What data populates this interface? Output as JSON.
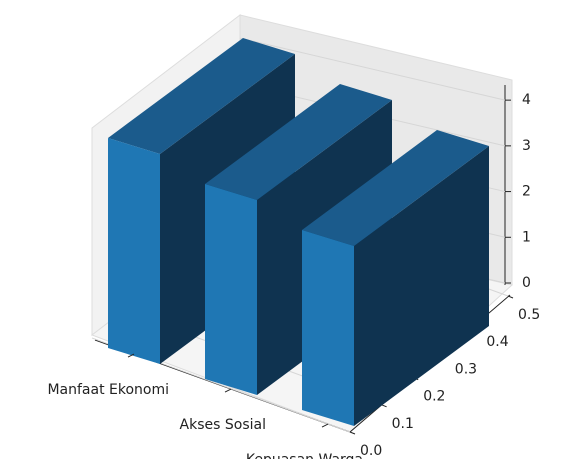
{
  "chart_data": {
    "type": "bar3d",
    "categories": [
      "Manfaat Ekonomi",
      "Akses Sosial",
      "Kepuasan Warga"
    ],
    "values": [
      4.2,
      3.9,
      3.6
    ],
    "color": "#1f77b4",
    "ylim": [
      0,
      0.5
    ],
    "yticks": [
      {
        "value": 0,
        "label": "0.0"
      },
      0.1,
      0.2,
      0.3,
      0.4,
      0.5
    ],
    "zlim": [
      0,
      4.2
    ],
    "zticks": [
      0,
      1,
      2,
      3,
      4
    ],
    "grid": true
  }
}
